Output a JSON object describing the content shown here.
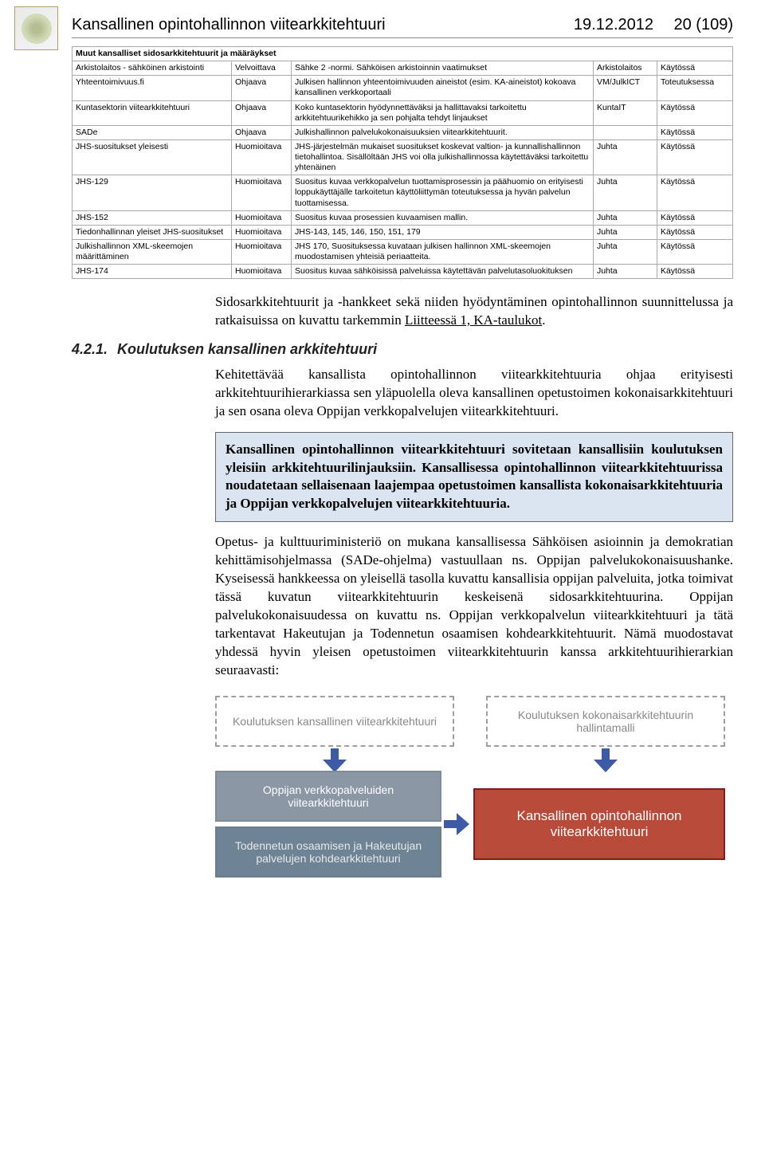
{
  "header": {
    "title": "Kansallinen opintohallinnon viitearkkitehtuuri",
    "date": "19.12.2012",
    "page": "20 (109)"
  },
  "table": {
    "caption": "Muut kansalliset sidosarkkitehtuurit ja määräykset",
    "rows": [
      {
        "c1": "Arkistolaitos - sähköinen arkistointi",
        "c2": "Velvoittava",
        "c3": "Sähke 2 -normi. Sähköisen arkistoinnin vaatimukset",
        "c4": "Arkistolaitos",
        "c5": "Käytössä"
      },
      {
        "c1": "Yhteentoimivuus.fi",
        "c2": "Ohjaava",
        "c3": "Julkisen hallinnon yhteentoimivuuden aineistot (esim. KA-aineistot) kokoava kansallinen verkkoportaali",
        "c4": "VM/JulkICT",
        "c5": "Toteutuksessa"
      },
      {
        "c1": "Kuntasektorin viitearkkitehtuuri",
        "c2": "Ohjaava",
        "c3": "Koko kuntasektorin hyödynnettäväksi ja hallittavaksi tarkoitettu arkkitehtuurikehikko ja sen pohjalta tehdyt linjaukset",
        "c4": "KuntaIT",
        "c5": "Käytössä"
      },
      {
        "c1": "SADe",
        "c2": "Ohjaava",
        "c3": "Julkishallinnon palvelukokonaisuuksien viitearkkitehtuurit.",
        "c4": "",
        "c5": "Käytössä"
      },
      {
        "c1": "JHS-suositukset yleisesti",
        "c2": "Huomioitava",
        "c3": "JHS-järjestelmän mukaiset suositukset koskevat valtion- ja kunnallishallinnon tietohallintoa. Sisällöltään JHS voi olla julkishallinnossa käytettäväksi tarkoitettu yhtenäinen",
        "c4": "Juhta",
        "c5": "Käytössä"
      },
      {
        "c1": "JHS-129",
        "c2": "Huomioitava",
        "c3": "Suositus kuvaa verkkopalvelun tuottamisprosessin ja päähuomio on erityisesti loppukäyttäjälle tarkoitetun käyttöliittymän toteutuksessa ja hyvän palvelun tuottamisessa.",
        "c4": "Juhta",
        "c5": "Käytössä"
      },
      {
        "c1": "JHS-152",
        "c2": "Huomioitava",
        "c3": "Suositus kuvaa prosessien kuvaamisen mallin.",
        "c4": "Juhta",
        "c5": "Käytössä"
      },
      {
        "c1": "Tiedonhallinnan yleiset JHS-suositukset",
        "c2": "Huomioitava",
        "c3": "JHS-143, 145, 146, 150, 151, 179",
        "c4": "Juhta",
        "c5": "Käytössä"
      },
      {
        "c1": "Julkishallinnon XML-skeemojen määrittäminen",
        "c2": "Huomioitava",
        "c3": "JHS 170, Suosituksessa kuvataan julkisen hallinnon XML-skeemojen muodostamisen yhteisiä periaatteita.",
        "c4": "Juhta",
        "c5": "Käytössä"
      },
      {
        "c1": "JHS-174",
        "c2": "Huomioitava",
        "c3": "Suositus kuvaa sähköisissä palveluissa käytettävän palvelutasoluokituksen",
        "c4": "Juhta",
        "c5": "Käytössä"
      }
    ]
  },
  "para1_a": "Sidosarkkitehtuurit ja -hankkeet sekä niiden hyödyntäminen opintohallinnon suunnittelussa ja ratkaisuissa on kuvattu tarkemmin ",
  "para1_link": "Liitteessä 1, KA-taulukot",
  "para1_b": ".",
  "section": {
    "num": "4.2.1.",
    "title": "Koulutuksen kansallinen arkkitehtuuri"
  },
  "para2": "Kehitettävää kansallista opintohallinnon viitearkkitehtuuria ohjaa erityisesti arkkitehtuurihierarkiassa sen yläpuolella oleva kansallinen opetustoimen kokonaisarkkitehtuuri ja sen osana oleva Oppijan verkkopalvelujen viitearkkitehtuuri.",
  "callout": "Kansallinen opintohallinnon viitearkkitehtuuri sovitetaan kansallisiin koulutuksen yleisiin arkkitehtuurilinjauksiin. Kansallisessa opintohallinnon viitearkkitehtuurissa noudatetaan sellaisenaan laajempaa opetustoimen kansallista kokonaisarkkitehtuuria ja Oppijan verkkopalvelujen viitearkkitehtuuria.",
  "para3": "Opetus- ja kulttuuriministeriö on mukana kansallisessa Sähköisen asioinnin ja demokratian kehittämisohjelmassa (SADe-ohjelma) vastuullaan ns. Oppijan palvelukokonaisuushanke. Kyseisessä hankkeessa on yleisellä tasolla kuvattu kansallisia oppijan palveluita, jotka toimivat tässä kuvatun viitearkkitehtuurin keskeisenä sidosarkkitehtuurina. Oppijan palvelukokonaisuudessa on kuvattu ns. Oppijan verkkopalvelun viitearkkitehtuuri ja tätä tarkentavat Hakeutujan ja Todennetun osaamisen kohdearkkitehtuurit. Nämä muodostavat yhdessä hyvin yleisen opetustoimen viitearkkitehtuurin kanssa arkkitehtuurihierarkian seuraavasti:",
  "diagram": {
    "top_left": "Koulutuksen kansallinen viitearkkitehtuuri",
    "top_right": "Koulutuksen kokonaisarkkitehtuurin hallintamalli",
    "bottom_left_a": "Oppijan verkkopalveluiden viitearkkitehtuuri",
    "bottom_left_b": "Todennetun osaamisen ja Hakeutujan palvelujen kohdearkkitehtuuri",
    "bottom_right": "Kansallinen opintohallinnon viitearkkitehtuuri",
    "colors": {
      "dashed_border": "#9aa0a6",
      "dashed_text": "#888888",
      "grey_fill": "#8b97a5",
      "grey_border": "#7f8d9b",
      "mid_fill": "#6e8394",
      "mid_border": "#6b7d8d",
      "red_fill": "#b84a3a",
      "red_border": "#7a2218",
      "arrow": "#3c5aa6",
      "callout_bg": "#dbe5f1"
    }
  }
}
